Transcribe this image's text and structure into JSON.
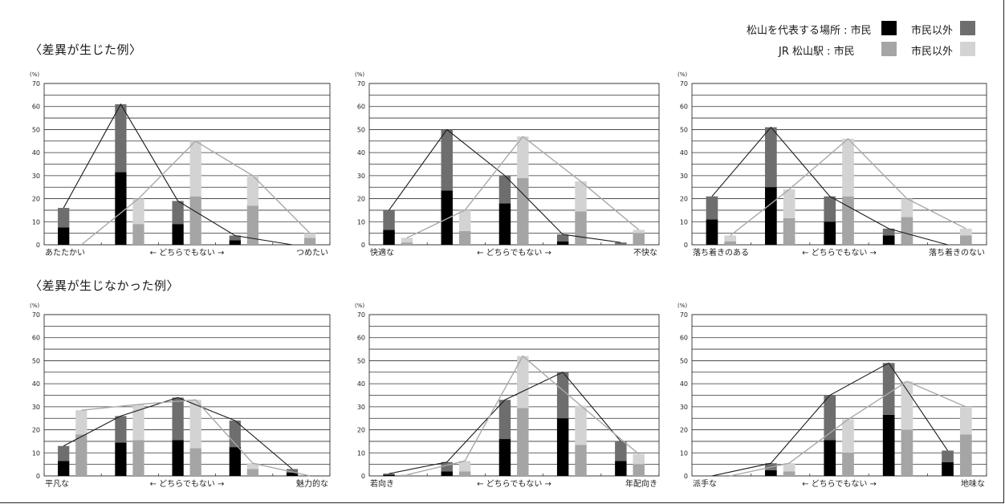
{
  "sections": {
    "top_title": "〈差異が生じた例〉",
    "bottom_title": "〈差異が生じなかった例〉"
  },
  "legend": {
    "items": [
      {
        "label": "松山を代表する場所 : 市民",
        "color": "#000000"
      },
      {
        "label": "市民以外",
        "color": "#6e6e6e"
      },
      {
        "label": "JR 松山駅 : 市民",
        "color": "#a5a5a5"
      },
      {
        "label": "市民以外",
        "color": "#d3d3d3"
      }
    ]
  },
  "colors": {
    "rep_citizen": "#000000",
    "rep_noncitizen": "#6e6e6e",
    "station_citizen": "#a5a5a5",
    "station_noncitizen": "#d3d3d3",
    "rep_line": "#1a1a1a",
    "station_line": "#a9a9a9"
  },
  "chart_data": [
    {
      "type": "bar",
      "unit": "(%)",
      "ylim": [
        0,
        70
      ],
      "yticks": [
        "0",
        "10",
        "20",
        "30",
        "40",
        "50",
        "60",
        "70"
      ],
      "scale_labels": [
        "あたたかい",
        "← どちらでもない →",
        "つめたい"
      ],
      "grid": true,
      "series": [
        {
          "name": "松山を代表する場所 : 市民",
          "values": [
            7.5,
            31.5,
            9,
            2,
            0
          ]
        },
        {
          "name": "市民以外",
          "values": [
            8.5,
            29.5,
            10,
            2,
            0
          ]
        },
        {
          "name": "JR 松山駅 : 市民",
          "values": [
            0,
            9,
            21,
            17,
            3
          ]
        },
        {
          "name": "市民以外",
          "values": [
            0,
            11,
            24,
            13,
            2
          ]
        }
      ]
    },
    {
      "type": "bar",
      "unit": "(%)",
      "ylim": [
        0,
        70
      ],
      "yticks": [
        "0",
        "10",
        "20",
        "30",
        "40",
        "50",
        "60",
        "70"
      ],
      "scale_labels": [
        "快適な",
        "← どちらでもない →",
        "不快な"
      ],
      "grid": true,
      "series": [
        {
          "name": "松山を代表する場所 : 市民",
          "values": [
            6.5,
            23.5,
            18,
            1.5,
            0
          ]
        },
        {
          "name": "市民以外",
          "values": [
            8.5,
            26.5,
            12,
            3,
            1
          ]
        },
        {
          "name": "JR 松山駅 : 市民",
          "values": [
            1,
            6,
            29,
            14.5,
            5
          ]
        },
        {
          "name": "市民以外",
          "values": [
            2,
            9,
            18,
            13,
            1.5
          ]
        }
      ]
    },
    {
      "type": "bar",
      "unit": "(%)",
      "ylim": [
        0,
        70
      ],
      "yticks": [
        "0",
        "10",
        "20",
        "30",
        "40",
        "50",
        "60",
        "70"
      ],
      "scale_labels": [
        "落ち着きのある",
        "← どちらでもない →",
        "落ち着きのない"
      ],
      "grid": true,
      "series": [
        {
          "name": "松山を代表する場所 : 市民",
          "values": [
            11,
            25,
            10,
            4,
            0
          ]
        },
        {
          "name": "市民以外",
          "values": [
            10,
            26,
            11,
            3,
            0
          ]
        },
        {
          "name": "JR 松山駅 : 市民",
          "values": [
            1.5,
            11.5,
            21,
            12,
            4
          ]
        },
        {
          "name": "市民以外",
          "values": [
            2.5,
            12.5,
            25,
            8,
            3
          ]
        }
      ]
    },
    {
      "type": "bar",
      "unit": "(%)",
      "ylim": [
        0,
        70
      ],
      "yticks": [
        "0",
        "10",
        "20",
        "30",
        "40",
        "50",
        "60",
        "70"
      ],
      "scale_labels": [
        "平凡な",
        "← どちらでもない →",
        "魅力的な"
      ],
      "grid": true,
      "series": [
        {
          "name": "松山を代表する場所 : 市民",
          "values": [
            6.5,
            14.5,
            15.5,
            12.5,
            1.5
          ]
        },
        {
          "name": "市民以外",
          "values": [
            6.5,
            11.5,
            18.5,
            11.5,
            1.5
          ]
        },
        {
          "name": "JR 松山駅 : 市民",
          "values": [
            18,
            15.5,
            12,
            3,
            0
          ]
        },
        {
          "name": "市民以外",
          "values": [
            10.5,
            15.5,
            21,
            2.5,
            0
          ]
        }
      ]
    },
    {
      "type": "bar",
      "unit": "(%)",
      "ylim": [
        0,
        70
      ],
      "yticks": [
        "0",
        "10",
        "20",
        "30",
        "40",
        "50",
        "60",
        "70"
      ],
      "scale_labels": [
        "若向き",
        "← どちらでもない →",
        "年配向き"
      ],
      "grid": true,
      "series": [
        {
          "name": "松山を代表する場所 : 市民",
          "values": [
            0.5,
            2,
            16,
            25,
            6.5
          ]
        },
        {
          "name": "市民以外",
          "values": [
            0.5,
            4,
            17,
            20,
            8.5
          ]
        },
        {
          "name": "JR 松山駅 : 市民",
          "values": [
            0.5,
            2,
            29.5,
            13.5,
            5
          ]
        },
        {
          "name": "市民以外",
          "values": [
            0,
            4.5,
            22.5,
            17,
            4.5
          ]
        }
      ]
    },
    {
      "type": "bar",
      "unit": "(%)",
      "ylim": [
        0,
        70
      ],
      "yticks": [
        "0",
        "10",
        "20",
        "30",
        "40",
        "50",
        "60",
        "70"
      ],
      "scale_labels": [
        "派手な",
        "← どちらでもない →",
        "地味な"
      ],
      "grid": true,
      "series": [
        {
          "name": "松山を代表する場所 : 市民",
          "values": [
            0,
            2.5,
            15.5,
            26.5,
            6
          ]
        },
        {
          "name": "市民以外",
          "values": [
            0,
            3,
            19.5,
            22.5,
            5
          ]
        },
        {
          "name": "JR 松山駅 : 市民",
          "values": [
            0,
            2,
            10,
            20,
            18
          ]
        },
        {
          "name": "市民以外",
          "values": [
            0,
            3.5,
            14.5,
            21,
            12
          ]
        }
      ]
    }
  ]
}
